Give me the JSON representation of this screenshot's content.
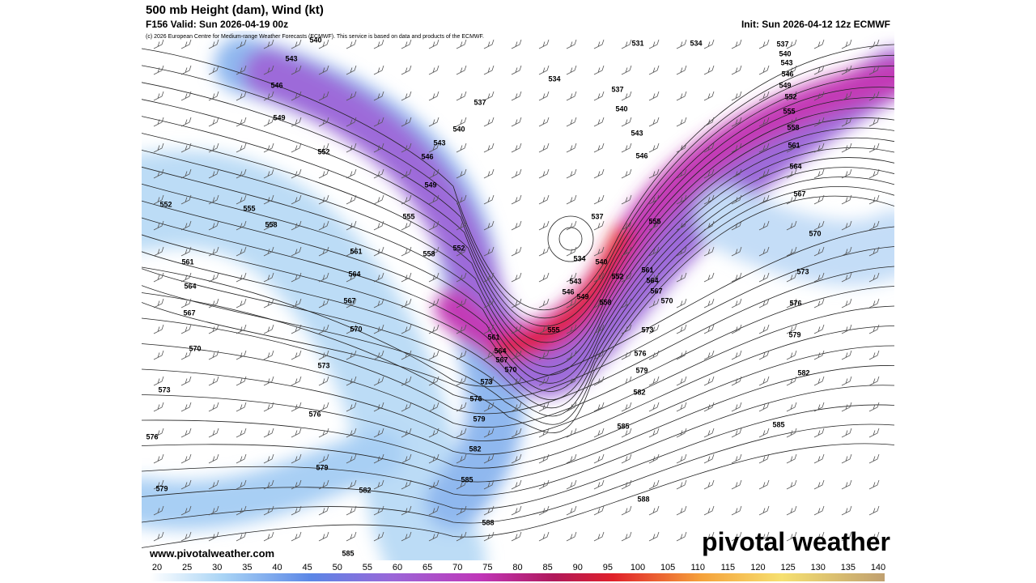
{
  "header": {
    "title": "500 mb Height (dam), Wind (kt)",
    "valid": "F156 Valid: Sun 2026-04-19 00z",
    "init": "Init: Sun 2026-04-12 12z ECMWF",
    "credit": "(c) 2026 European Centre for Medium-range Weather Forecasts (ECMWF). This service is based on data and products of the ECMWF."
  },
  "map": {
    "contour_labels": [
      543,
      546,
      549,
      552,
      552,
      555,
      558,
      561,
      564,
      567,
      570,
      573,
      576,
      579,
      531,
      534,
      537,
      540,
      543,
      546,
      537,
      540,
      543,
      546,
      549,
      555,
      558,
      561,
      564,
      567,
      570,
      573,
      576,
      579,
      582,
      585,
      552,
      537,
      534,
      540,
      543,
      546,
      549,
      552,
      555,
      558,
      561,
      564,
      567,
      570,
      573,
      576,
      579,
      582,
      585,
      588,
      588,
      585,
      582,
      579,
      576,
      573,
      570,
      567,
      564,
      561,
      555,
      534,
      537,
      540,
      543,
      546,
      549,
      552,
      555,
      558,
      561,
      564,
      567,
      570,
      573,
      576,
      579,
      582,
      585,
      540
    ],
    "url": "www.pivotalweather.com",
    "watermark": "pivotal weather"
  },
  "colorbar": {
    "ticks": [
      20,
      25,
      30,
      35,
      40,
      45,
      50,
      55,
      60,
      65,
      70,
      75,
      80,
      85,
      90,
      95,
      100,
      105,
      110,
      115,
      120,
      125,
      130,
      135,
      140
    ]
  }
}
